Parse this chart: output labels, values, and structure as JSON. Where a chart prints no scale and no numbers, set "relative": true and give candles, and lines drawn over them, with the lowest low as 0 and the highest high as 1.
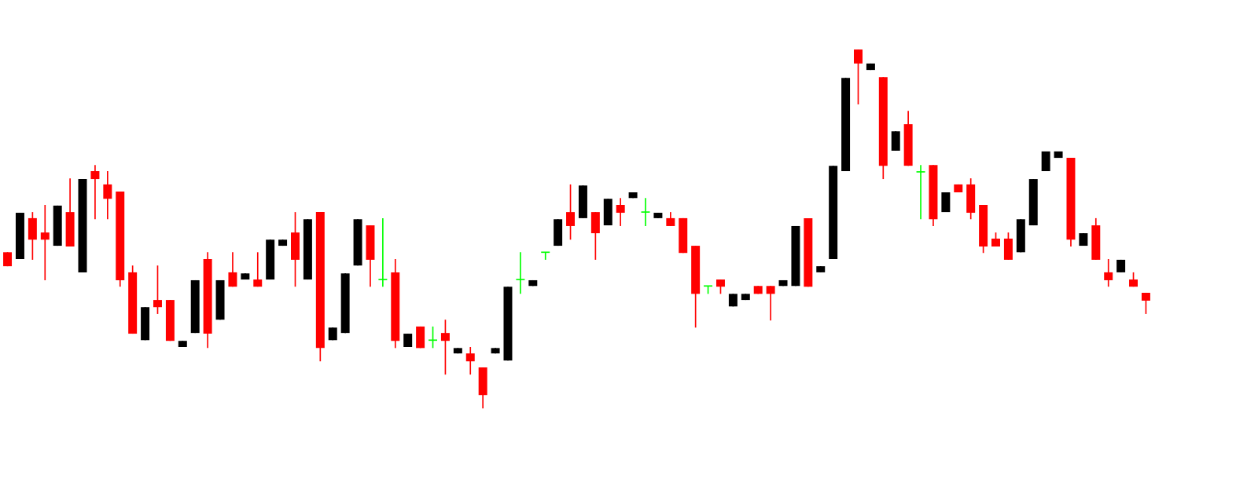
{
  "chart_data": {
    "type": "candlestick",
    "relative": true,
    "categories": [
      null,
      null,
      null,
      null,
      null,
      null,
      null,
      null,
      null,
      null,
      null,
      null,
      null,
      null,
      null,
      null,
      null,
      null,
      null,
      null,
      null,
      null,
      null,
      null,
      null,
      null,
      null,
      null,
      null,
      null,
      null,
      null,
      null,
      null,
      null,
      null,
      null,
      null,
      null,
      null,
      null,
      null,
      null,
      null,
      null,
      null,
      null,
      null,
      null,
      null,
      null,
      null,
      null,
      null,
      null,
      null,
      null,
      null,
      null,
      null,
      null,
      null,
      null,
      null,
      null,
      null,
      null,
      null,
      null,
      null,
      null,
      null,
      null,
      null,
      null,
      null,
      null,
      null,
      null,
      null,
      null,
      null,
      null,
      null,
      null,
      null,
      null,
      null,
      null,
      null,
      null,
      null
    ],
    "ohlc": [
      [
        0.435,
        0.435,
        0.396,
        0.396
      ],
      [
        0.416,
        0.545,
        0.416,
        0.545
      ],
      [
        0.53,
        0.547,
        0.414,
        0.47
      ],
      [
        0.49,
        0.567,
        0.357,
        0.47
      ],
      [
        0.453,
        0.565,
        0.453,
        0.565
      ],
      [
        0.547,
        0.641,
        0.451,
        0.451
      ],
      [
        0.379,
        0.639,
        0.379,
        0.639
      ],
      [
        0.661,
        0.678,
        0.527,
        0.639
      ],
      [
        0.624,
        0.661,
        0.527,
        0.584
      ],
      [
        0.604,
        0.604,
        0.339,
        0.357
      ],
      [
        0.379,
        0.398,
        0.208,
        0.208
      ],
      [
        0.19,
        0.282,
        0.19,
        0.282
      ],
      [
        0.302,
        0.398,
        0.263,
        0.282
      ],
      [
        0.302,
        0.302,
        0.188,
        0.188
      ],
      [
        0.171,
        0.188,
        0.171,
        0.188
      ],
      [
        0.21,
        0.357,
        0.21,
        0.357
      ],
      [
        0.416,
        0.435,
        0.168,
        0.208
      ],
      [
        0.247,
        0.357,
        0.247,
        0.357
      ],
      [
        0.379,
        0.435,
        0.339,
        0.339
      ],
      [
        0.359,
        0.376,
        0.359,
        0.376
      ],
      [
        0.359,
        0.435,
        0.339,
        0.339
      ],
      [
        0.359,
        0.47,
        0.359,
        0.47
      ],
      [
        0.453,
        0.47,
        0.453,
        0.47
      ],
      [
        0.49,
        0.547,
        0.339,
        0.414
      ],
      [
        0.359,
        0.527,
        0.359,
        0.527
      ],
      [
        0.547,
        0.547,
        0.131,
        0.168
      ],
      [
        0.19,
        0.225,
        0.19,
        0.225
      ],
      [
        0.21,
        0.376,
        0.21,
        0.376
      ],
      [
        0.398,
        0.527,
        0.398,
        0.527
      ],
      [
        0.51,
        0.51,
        0.339,
        0.414
      ],
      [
        0.359,
        0.53,
        0.339,
        0.359
      ],
      [
        0.379,
        0.416,
        0.168,
        0.188
      ],
      [
        0.171,
        0.208,
        0.171,
        0.208
      ],
      [
        0.228,
        0.228,
        0.168,
        0.168
      ],
      [
        0.19,
        0.228,
        0.168,
        0.19
      ],
      [
        0.21,
        0.247,
        0.094,
        0.188
      ],
      [
        0.153,
        0.168,
        0.153,
        0.168
      ],
      [
        0.153,
        0.171,
        0.094,
        0.131
      ],
      [
        0.114,
        0.114,
        0,
        0.037
      ],
      [
        0.153,
        0.168,
        0.153,
        0.168
      ],
      [
        0.133,
        0.339,
        0.133,
        0.339
      ],
      [
        0.359,
        0.435,
        0.319,
        0.359
      ],
      [
        0.341,
        0.357,
        0.341,
        0.357
      ],
      [
        0.435,
        0.435,
        0.414,
        0.435
      ],
      [
        0.453,
        0.527,
        0.453,
        0.527
      ],
      [
        0.547,
        0.624,
        0.47,
        0.508
      ],
      [
        0.53,
        0.621,
        0.53,
        0.621
      ],
      [
        0.547,
        0.547,
        0.414,
        0.488
      ],
      [
        0.51,
        0.584,
        0.51,
        0.584
      ],
      [
        0.567,
        0.586,
        0.508,
        0.545
      ],
      [
        0.586,
        0.602,
        0.586,
        0.602
      ],
      [
        0.547,
        0.586,
        0.508,
        0.547
      ],
      [
        0.53,
        0.545,
        0.53,
        0.545
      ],
      [
        0.53,
        0.547,
        0.508,
        0.508
      ],
      [
        0.53,
        0.53,
        0.433,
        0.433
      ],
      [
        0.453,
        0.453,
        0.225,
        0.319
      ],
      [
        0.341,
        0.341,
        0.319,
        0.341
      ],
      [
        0.359,
        0.359,
        0.319,
        0.339
      ],
      [
        0.284,
        0.319,
        0.284,
        0.319
      ],
      [
        0.302,
        0.319,
        0.302,
        0.319
      ],
      [
        0.341,
        0.341,
        0.319,
        0.319
      ],
      [
        0.341,
        0.341,
        0.245,
        0.319
      ],
      [
        0.341,
        0.357,
        0.341,
        0.357
      ],
      [
        0.341,
        0.508,
        0.341,
        0.508
      ],
      [
        0.53,
        0.53,
        0.339,
        0.339
      ],
      [
        0.379,
        0.396,
        0.379,
        0.396
      ],
      [
        0.416,
        0.676,
        0.416,
        0.676
      ],
      [
        0.661,
        0.921,
        0.661,
        0.921
      ],
      [
        1.0,
        1.0,
        0.847,
        0.961
      ],
      [
        0.943,
        0.961,
        0.943,
        0.961
      ],
      [
        0.923,
        0.923,
        0.639,
        0.676
      ],
      [
        0.718,
        0.772,
        0.718,
        0.772
      ],
      [
        0.792,
        0.829,
        0.676,
        0.676
      ],
      [
        0.659,
        0.678,
        0.527,
        0.659
      ],
      [
        0.678,
        0.678,
        0.508,
        0.527
      ],
      [
        0.547,
        0.602,
        0.547,
        0.602
      ],
      [
        0.624,
        0.624,
        0.602,
        0.602
      ],
      [
        0.624,
        0.641,
        0.527,
        0.545
      ],
      [
        0.567,
        0.567,
        0.433,
        0.451
      ],
      [
        0.473,
        0.49,
        0.451,
        0.451
      ],
      [
        0.473,
        0.49,
        0.414,
        0.414
      ],
      [
        0.435,
        0.527,
        0.435,
        0.527
      ],
      [
        0.51,
        0.639,
        0.51,
        0.639
      ],
      [
        0.661,
        0.716,
        0.661,
        0.716
      ],
      [
        0.698,
        0.716,
        0.698,
        0.716
      ],
      [
        0.698,
        0.698,
        0.451,
        0.47
      ],
      [
        0.453,
        0.488,
        0.453,
        0.488
      ],
      [
        0.51,
        0.53,
        0.414,
        0.414
      ],
      [
        0.379,
        0.416,
        0.339,
        0.357
      ],
      [
        0.379,
        0.414,
        0.379,
        0.414
      ],
      [
        0.359,
        0.379,
        0.339,
        0.339
      ],
      [
        0.322,
        0.322,
        0.263,
        0.3
      ]
    ],
    "colors": [
      "#ff0000",
      "#000000",
      "#ff0000",
      "#ff0000",
      "#000000",
      "#ff0000",
      "#000000",
      "#ff0000",
      "#ff0000",
      "#ff0000",
      "#ff0000",
      "#000000",
      "#ff0000",
      "#ff0000",
      "#000000",
      "#000000",
      "#ff0000",
      "#000000",
      "#ff0000",
      "#000000",
      "#ff0000",
      "#000000",
      "#000000",
      "#ff0000",
      "#000000",
      "#ff0000",
      "#000000",
      "#000000",
      "#000000",
      "#ff0000",
      "#00ff00",
      "#ff0000",
      "#000000",
      "#ff0000",
      "#00ff00",
      "#ff0000",
      "#000000",
      "#ff0000",
      "#ff0000",
      "#000000",
      "#000000",
      "#00ff00",
      "#000000",
      "#00ff00",
      "#000000",
      "#ff0000",
      "#000000",
      "#ff0000",
      "#000000",
      "#ff0000",
      "#000000",
      "#00ff00",
      "#000000",
      "#ff0000",
      "#ff0000",
      "#ff0000",
      "#00ff00",
      "#ff0000",
      "#000000",
      "#000000",
      "#ff0000",
      "#ff0000",
      "#000000",
      "#000000",
      "#ff0000",
      "#000000",
      "#000000",
      "#000000",
      "#ff0000",
      "#000000",
      "#ff0000",
      "#000000",
      "#ff0000",
      "#00ff00",
      "#ff0000",
      "#000000",
      "#ff0000",
      "#ff0000",
      "#ff0000",
      "#ff0000",
      "#ff0000",
      "#000000",
      "#000000",
      "#000000",
      "#000000",
      "#ff0000",
      "#000000",
      "#ff0000",
      "#ff0000",
      "#000000",
      "#ff0000",
      "#ff0000"
    ]
  }
}
